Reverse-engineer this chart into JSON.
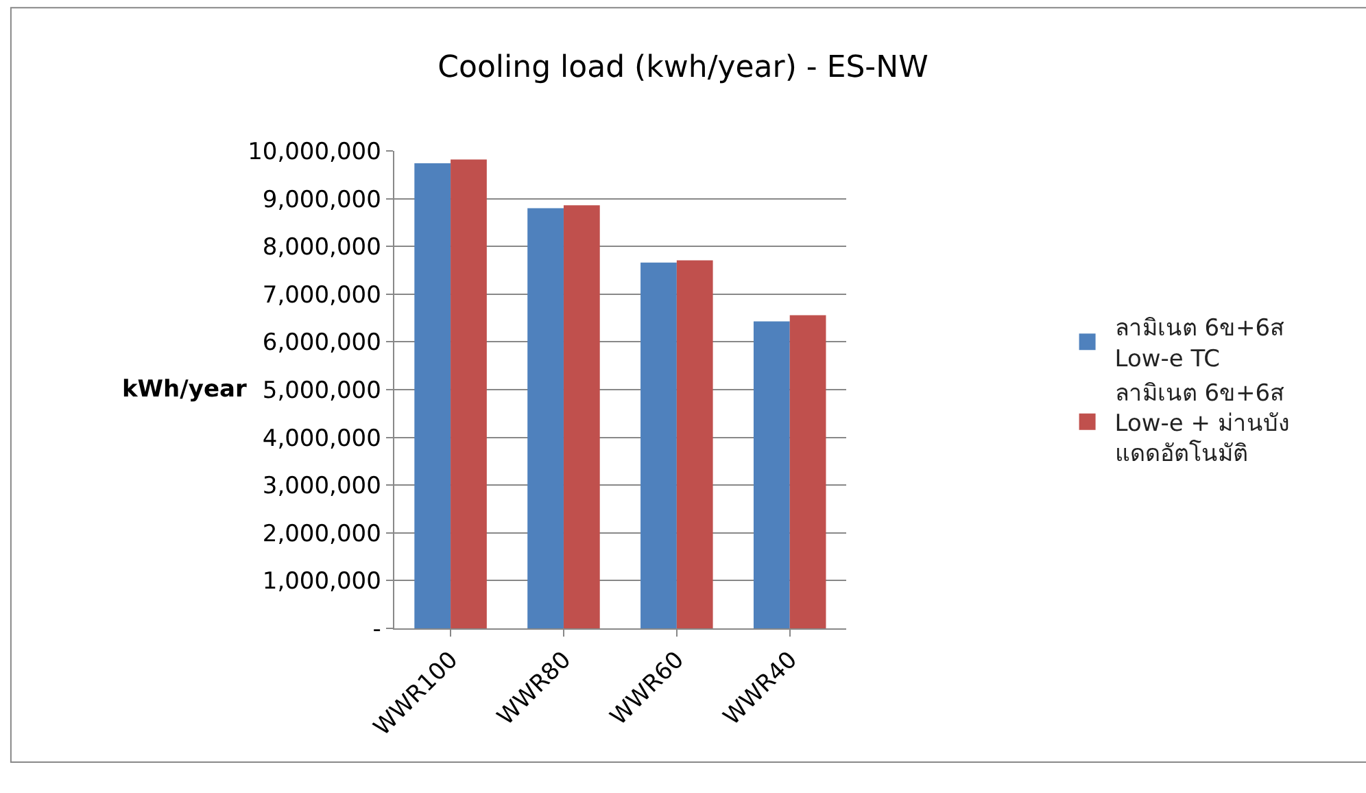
{
  "chart_data": {
    "type": "bar",
    "title": "Cooling load (kwh/year) - ES-NW",
    "ylabel": "kWh/year",
    "categories": [
      "WWR100",
      "WWR80",
      "WWR60",
      "WWR40"
    ],
    "series": [
      {
        "name": "ลามิเนต 6ข+6ส\nLow-e TC",
        "color": "#4f81bd",
        "values": [
          9740000,
          8800000,
          7660000,
          6430000
        ]
      },
      {
        "name": "ลามิเนต 6ข+6ส\nLow-e + ม่านบัง\nแดดอัตโนมัติ",
        "color": "#c0504d",
        "values": [
          9820000,
          8860000,
          7710000,
          6560000
        ]
      }
    ],
    "ylim": [
      0,
      10000000
    ],
    "yticks": [
      {
        "value": 0,
        "label": "-"
      },
      {
        "value": 1000000,
        "label": "1,000,000"
      },
      {
        "value": 2000000,
        "label": "2,000,000"
      },
      {
        "value": 3000000,
        "label": "3,000,000"
      },
      {
        "value": 4000000,
        "label": "4,000,000"
      },
      {
        "value": 5000000,
        "label": "5,000,000"
      },
      {
        "value": 6000000,
        "label": "6,000,000"
      },
      {
        "value": 7000000,
        "label": "7,000,000"
      },
      {
        "value": 8000000,
        "label": "8,000,000"
      },
      {
        "value": 9000000,
        "label": "9,000,000"
      },
      {
        "value": 10000000,
        "label": "10,000,000"
      }
    ],
    "grid": "y",
    "legend": "right"
  }
}
